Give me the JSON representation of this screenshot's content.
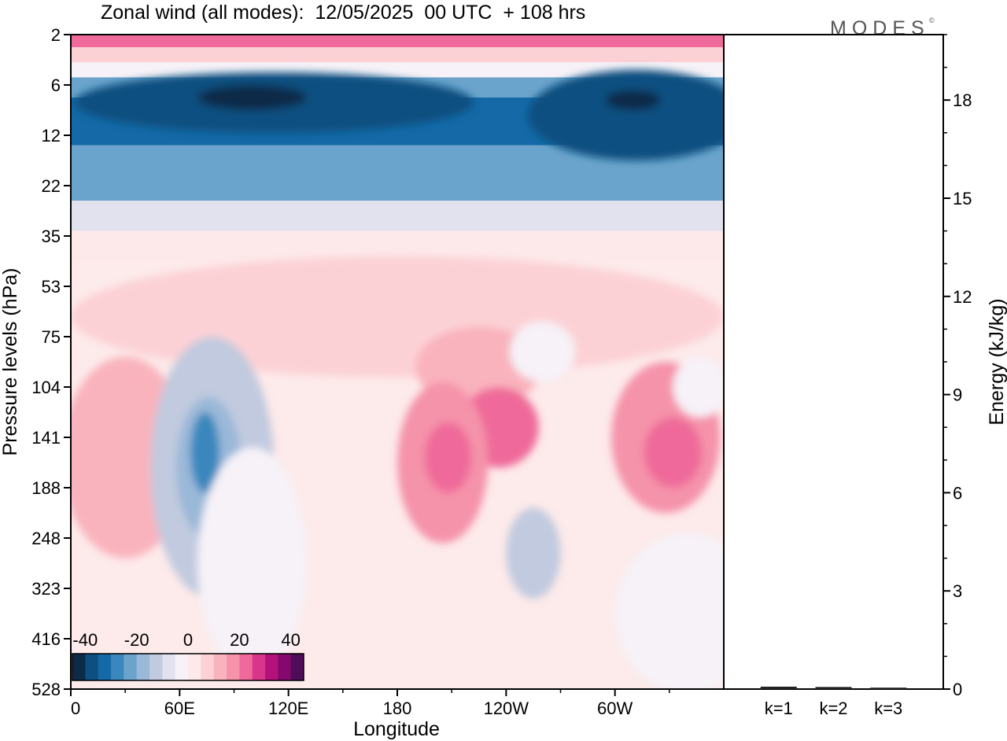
{
  "title": "Zonal wind (all modes):  12/05/2025  00 UTC  + 108 hrs",
  "logo": "MODES",
  "chart_data": [
    {
      "type": "heatmap",
      "title": "Zonal wind (all modes):  12/05/2025  00 UTC  + 108 hrs",
      "xlabel": "Longitude",
      "ylabel": "Pressure levels (hPa)",
      "x_ticks": [
        {
          "lon": 0,
          "label": "0"
        },
        {
          "lon": 60,
          "label": "60E"
        },
        {
          "lon": 120,
          "label": "120E"
        },
        {
          "lon": 180,
          "label": "180"
        },
        {
          "lon": 240,
          "label": "120W"
        },
        {
          "lon": 300,
          "label": "60W"
        }
      ],
      "xlim": [
        0,
        360
      ],
      "y_levels": [
        "2",
        "6",
        "12",
        "22",
        "35",
        "53",
        "75",
        "104",
        "141",
        "188",
        "248",
        "323",
        "416",
        "528"
      ],
      "y_scale": "categorical (model levels, top to bottom)",
      "colorbar": {
        "labels": [
          "-40",
          "-20",
          "0",
          "20",
          "40"
        ],
        "vmin": -45,
        "vmax": 45,
        "step": 5,
        "colors": [
          "#0d2a49",
          "#0c4f80",
          "#1469a6",
          "#3a87bd",
          "#6aa4cc",
          "#9ab8d8",
          "#c1cadf",
          "#e2e2ef",
          "#f6f2f8",
          "#fde9ea",
          "#fcd1d5",
          "#f9b3bd",
          "#f593aa",
          "#ef6a9a",
          "#d9358a",
          "#b3127b",
          "#85086e",
          "#4f0d58"
        ]
      },
      "bands": [
        {
          "lon": [
            0,
            360
          ],
          "level": [
            0,
            0.25
          ],
          "value": 20
        },
        {
          "lon": [
            0,
            360
          ],
          "level": [
            0.25,
            0.55
          ],
          "value": 8
        },
        {
          "lon": [
            0,
            360
          ],
          "level": [
            0.55,
            0.85
          ],
          "value": -5
        },
        {
          "lon": [
            0,
            360
          ],
          "level": [
            0.85,
            1.25
          ],
          "value": -22
        },
        {
          "lon": [
            0,
            360
          ],
          "level": [
            1.25,
            2.2
          ],
          "value": -32
        },
        {
          "lon": [
            0,
            360
          ],
          "level": [
            2.2,
            3.3
          ],
          "value": -22
        },
        {
          "lon": [
            0,
            360
          ],
          "level": [
            3.3,
            3.9
          ],
          "value": -8
        },
        {
          "lon": [
            0,
            360
          ],
          "level": [
            3.9,
            4.5
          ],
          "value": 2
        }
      ],
      "blobs": [
        {
          "lon": 112,
          "level": 1.35,
          "rlon": 110,
          "rlev": 0.6,
          "value": -38
        },
        {
          "lon": 312,
          "level": 1.6,
          "rlon": 60,
          "rlev": 0.9,
          "value": -38
        },
        {
          "lon": 100,
          "level": 1.25,
          "rlon": 30,
          "rlev": 0.25,
          "value": -42
        },
        {
          "lon": 310,
          "level": 1.3,
          "rlon": 15,
          "rlev": 0.2,
          "value": -42
        },
        {
          "lon": 180,
          "level": 5.6,
          "rlon": 180,
          "rlev": 1.2,
          "value": 7
        },
        {
          "lon": 225,
          "level": 6.6,
          "rlon": 35,
          "rlev": 0.8,
          "value": 14
        },
        {
          "lon": 236,
          "level": 7.8,
          "rlon": 22,
          "rlev": 0.8,
          "value": 22
        },
        {
          "lon": 205,
          "level": 8.5,
          "rlon": 25,
          "rlev": 1.6,
          "value": 15
        },
        {
          "lon": 208,
          "level": 8.4,
          "rlon": 13,
          "rlev": 0.7,
          "value": 22
        },
        {
          "lon": 328,
          "level": 8.0,
          "rlon": 30,
          "rlev": 1.5,
          "value": 15
        },
        {
          "lon": 332,
          "level": 8.3,
          "rlon": 16,
          "rlev": 0.7,
          "value": 23
        },
        {
          "lon": 30,
          "level": 8.4,
          "rlon": 35,
          "rlev": 2.0,
          "value": 10
        },
        {
          "lon": 26,
          "level": 8.6,
          "rlon": 6,
          "rlev": 1.3,
          "value": 14
        },
        {
          "lon": 260,
          "level": 6.3,
          "rlon": 18,
          "rlev": 0.6,
          "value": -2
        },
        {
          "lon": 347,
          "level": 7.0,
          "rlon": 15,
          "rlev": 0.6,
          "value": -2
        },
        {
          "lon": 78,
          "level": 8.6,
          "rlon": 34,
          "rlev": 2.6,
          "value": -12
        },
        {
          "lon": 76,
          "level": 8.6,
          "rlon": 18,
          "rlev": 1.4,
          "value": -20
        },
        {
          "lon": 74,
          "level": 8.3,
          "rlon": 8,
          "rlev": 0.8,
          "value": -27
        },
        {
          "lon": 100,
          "level": 10.5,
          "rlon": 30,
          "rlev": 2.3,
          "value": -4
        },
        {
          "lon": 255,
          "level": 10.3,
          "rlon": 15,
          "rlev": 0.9,
          "value": -12
        },
        {
          "lon": 340,
          "level": 11.5,
          "rlon": 40,
          "rlev": 1.6,
          "value": -4
        }
      ]
    },
    {
      "type": "bar",
      "ylabel": "Energy (kJ/kg)",
      "categories": [
        "k=1",
        "k=2",
        "k=3"
      ],
      "values": [
        0.05,
        0.04,
        0.02
      ],
      "ylim": [
        0,
        20
      ],
      "y_ticks": [
        "0",
        "3",
        "6",
        "9",
        "12",
        "15",
        "18"
      ]
    }
  ]
}
